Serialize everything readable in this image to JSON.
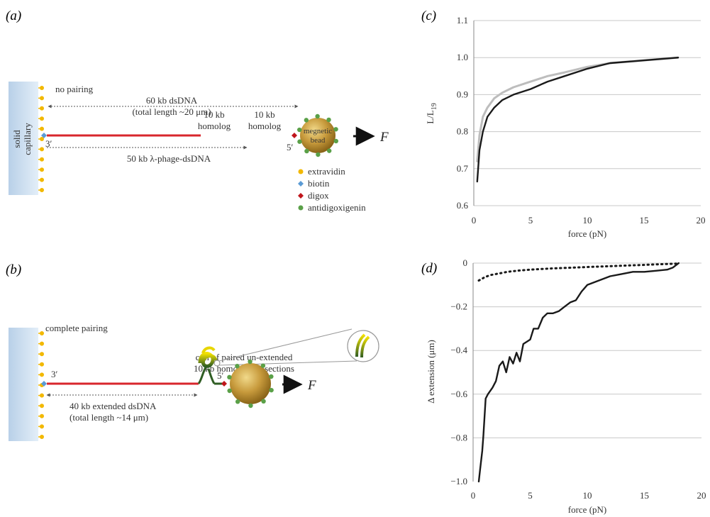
{
  "panels": {
    "a": {
      "letter": "(a)",
      "capillary_label_1": "solid",
      "capillary_label_2": "capillary",
      "no_pairing": "no pairing",
      "span_60kb_1": "60 kb dsDNA",
      "span_60kb_2": "(total length ~20 μm)",
      "homolog_a_1": "10 kb",
      "homolog_a_2": "homolog",
      "homolog_b_1": "10 kb",
      "homolog_b_2": "homolog",
      "end_3": "3′",
      "end_5": "5′",
      "bead_label_1": "megnetic",
      "bead_label_2": "bead",
      "force_label": "F",
      "span_50kb": "50 kb λ-phage-dsDNA",
      "legend": [
        {
          "label": "extravidin",
          "color": "#f2b800"
        },
        {
          "label": "biotin",
          "color": "#5b9bd5"
        },
        {
          "label": "digox",
          "color": "#c0161c"
        },
        {
          "label": "antidigoxigenin",
          "color": "#5aa048"
        }
      ]
    },
    "b": {
      "letter": "(b)",
      "complete_pairing": "complete pairing",
      "coil_label_1": "coil of paired un-extended",
      "coil_label_2": "10 kb homologous sections",
      "end_3": "3′",
      "end_5": "5′",
      "force_label": "F",
      "span_40kb_1": "40 kb extended dsDNA",
      "span_40kb_2": "(total length ~14 μm)"
    }
  },
  "colors": {
    "capillary": "#c9dcef",
    "dna_red": "#d8262c",
    "dna_yellow": "#e0c500",
    "dna_green": "#2f5d23",
    "bead": "#b98e2e",
    "gray_curve": "#bdbdbd",
    "black_curve": "#1a1a1a",
    "grid": "#c8c8c8"
  },
  "chart_data": [
    {
      "panel": "(c)",
      "type": "line",
      "xlabel": "force (pN)",
      "ylabel": "L/L",
      "ylabel_sub": "19",
      "xlim": [
        0,
        20
      ],
      "ylim": [
        0.6,
        1.1
      ],
      "xticks": [
        0,
        5,
        10,
        15,
        20
      ],
      "yticks": [
        0.6,
        0.7,
        0.8,
        0.9,
        1.0,
        1.1
      ],
      "ytick_labels": [
        "0.6",
        "0.7",
        "0.8",
        "0.9",
        "1.0",
        "1.1"
      ],
      "grid": "horizontal",
      "series": [
        {
          "style": "gray",
          "x": [
            0.3,
            0.5,
            0.8,
            1.2,
            1.8,
            2.5,
            3.5,
            5,
            6.5,
            8,
            10,
            12,
            14,
            16,
            18
          ],
          "y": [
            0.72,
            0.79,
            0.84,
            0.865,
            0.89,
            0.905,
            0.92,
            0.935,
            0.95,
            0.96,
            0.975,
            0.985,
            0.99,
            0.995,
            1.0
          ]
        },
        {
          "style": "black",
          "x": [
            0.3,
            0.5,
            0.8,
            1.2,
            1.8,
            2.5,
            3.5,
            5,
            6.5,
            8,
            10,
            12,
            14,
            16,
            18
          ],
          "y": [
            0.665,
            0.75,
            0.8,
            0.84,
            0.865,
            0.885,
            0.9,
            0.915,
            0.935,
            0.95,
            0.97,
            0.985,
            0.99,
            0.995,
            1.0
          ]
        }
      ]
    },
    {
      "panel": "(d)",
      "type": "line",
      "xlabel": "force (pN)",
      "ylabel": "Δ extension (μm)",
      "xlim": [
        0,
        20
      ],
      "ylim": [
        -1.0,
        0
      ],
      "xticks": [
        0,
        5,
        10,
        15,
        20
      ],
      "yticks": [
        -1.0,
        -0.8,
        -0.6,
        -0.4,
        -0.2,
        0
      ],
      "ytick_labels": [
        "−1.0",
        "−0.8",
        "−0.6",
        "−0.4",
        "−0.2",
        "0"
      ],
      "grid": "horizontal",
      "series": [
        {
          "style": "solid",
          "x": [
            0.5,
            0.6,
            0.8,
            0.9,
            1.1,
            1.3,
            1.7,
            2.0,
            2.3,
            2.6,
            2.9,
            3.2,
            3.5,
            3.8,
            4.1,
            4.4,
            4.7,
            5.0,
            5.3,
            5.7,
            6.1,
            6.5,
            7.0,
            7.5,
            8.0,
            8.5,
            9.0,
            9.5,
            10,
            11,
            12,
            13,
            14,
            15,
            16,
            17,
            17.5,
            18
          ],
          "y": [
            -1.0,
            -0.95,
            -0.86,
            -0.79,
            -0.62,
            -0.6,
            -0.57,
            -0.54,
            -0.47,
            -0.45,
            -0.5,
            -0.43,
            -0.46,
            -0.41,
            -0.45,
            -0.37,
            -0.36,
            -0.35,
            -0.3,
            -0.3,
            -0.25,
            -0.23,
            -0.23,
            -0.22,
            -0.2,
            -0.18,
            -0.17,
            -0.13,
            -0.1,
            -0.08,
            -0.06,
            -0.05,
            -0.04,
            -0.04,
            -0.035,
            -0.03,
            -0.02,
            0
          ]
        },
        {
          "style": "dotted",
          "x": [
            0.5,
            1,
            1.5,
            2,
            2.5,
            3,
            3.5,
            4,
            5,
            6,
            7,
            8,
            9,
            10,
            11,
            12,
            13,
            14,
            15,
            16,
            17,
            18
          ],
          "y": [
            -0.08,
            -0.065,
            -0.055,
            -0.05,
            -0.045,
            -0.04,
            -0.037,
            -0.034,
            -0.03,
            -0.027,
            -0.024,
            -0.022,
            -0.02,
            -0.018,
            -0.016,
            -0.014,
            -0.012,
            -0.01,
            -0.008,
            -0.006,
            -0.004,
            -0.002
          ]
        }
      ]
    }
  ]
}
